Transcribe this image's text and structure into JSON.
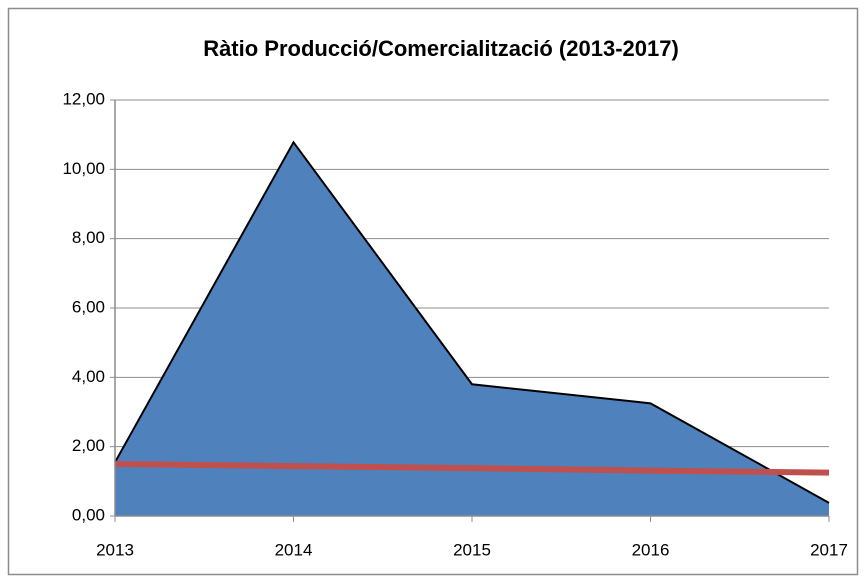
{
  "chart_data": {
    "type": "area",
    "title": "Ràtio Producció/Comercialització (2013-2017)",
    "categories": [
      "2013",
      "2014",
      "2015",
      "2016",
      "2017"
    ],
    "series": [
      {
        "type": "area",
        "color": "#4f81bd",
        "values": [
          1.55,
          10.78,
          3.8,
          3.25,
          0.38
        ]
      },
      {
        "type": "line",
        "color": "#c0504d",
        "values": [
          1.5,
          1.44,
          1.38,
          1.31,
          1.25
        ]
      }
    ],
    "ylim": [
      0,
      12
    ],
    "yticks": [
      {
        "value": 0,
        "label": "0,00"
      },
      {
        "value": 2,
        "label": "2,00"
      },
      {
        "value": 4,
        "label": "4,00"
      },
      {
        "value": 6,
        "label": "6,00"
      },
      {
        "value": 8,
        "label": "8,00"
      },
      {
        "value": 10,
        "label": "10,00"
      },
      {
        "value": 12,
        "label": "12,00"
      }
    ],
    "grid": true
  }
}
